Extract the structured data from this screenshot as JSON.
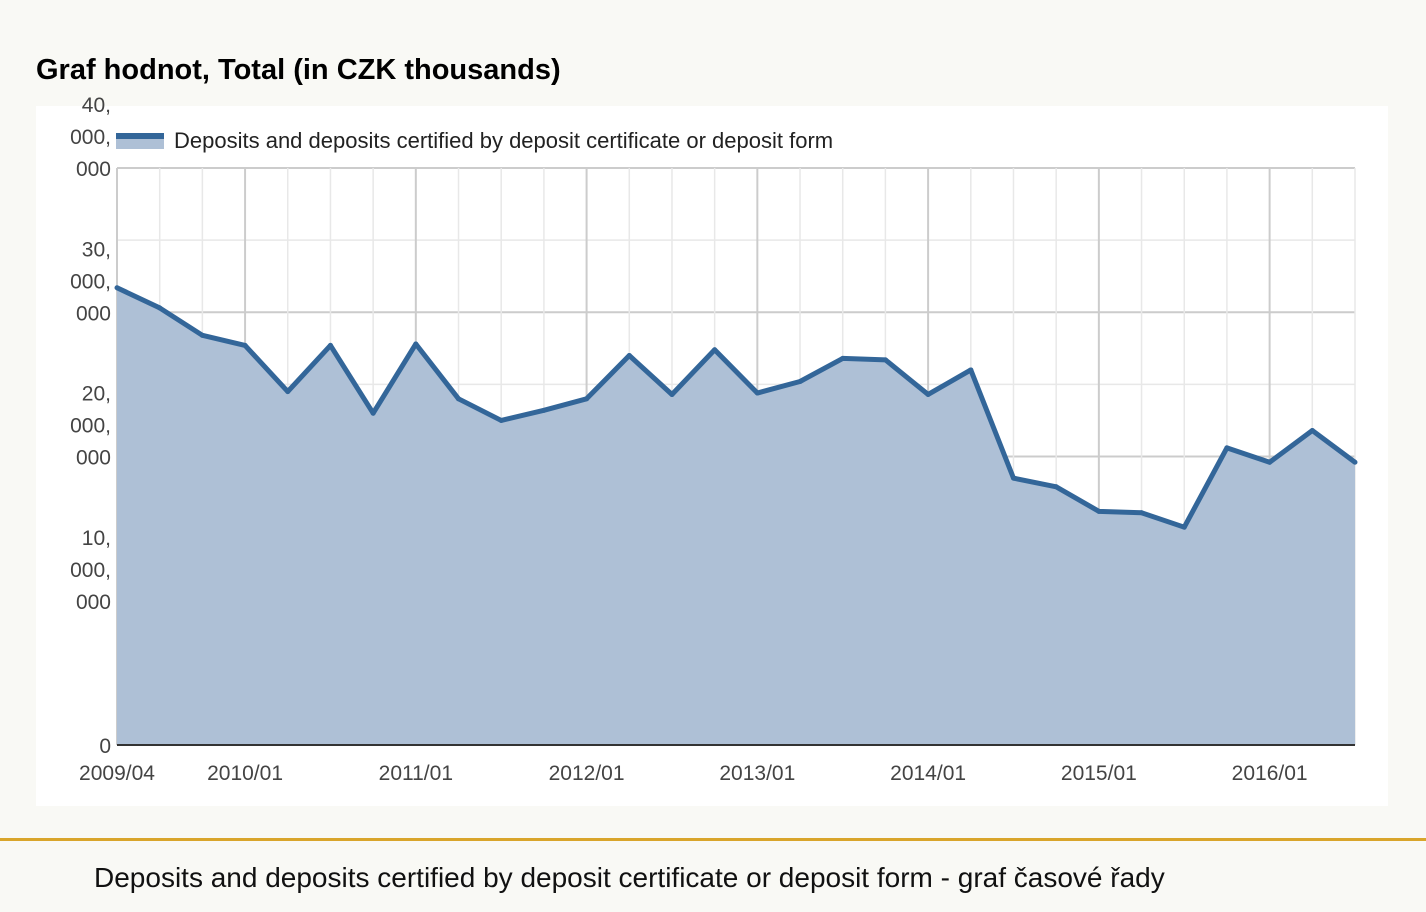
{
  "header": {
    "title": "Graf hodnot, Total (in CZK thousands)"
  },
  "caption": {
    "text": "Deposits and deposits certified by deposit certificate or deposit form - graf časové řady"
  },
  "colors": {
    "line": "#336699",
    "area": "#aec0d6",
    "accent": "#d9a52b"
  },
  "chart_data": {
    "type": "area",
    "title": "Graf hodnot, Total (in CZK thousands)",
    "series": [
      {
        "name": "Deposits and deposits certified by deposit certificate or deposit form",
        "x": [
          "2009/04",
          "2009/07",
          "2009/10",
          "2010/01",
          "2010/04",
          "2010/07",
          "2010/10",
          "2011/01",
          "2011/04",
          "2011/07",
          "2011/10",
          "2012/01",
          "2012/04",
          "2012/07",
          "2012/10",
          "2013/01",
          "2013/04",
          "2013/07",
          "2013/10",
          "2014/01",
          "2014/04",
          "2014/07",
          "2014/10",
          "2015/01",
          "2015/04",
          "2015/07",
          "2015/10",
          "2016/01",
          "2016/04",
          "2016/07"
        ],
        "values": [
          31700000,
          30300000,
          28400000,
          27700000,
          24500000,
          27700000,
          23000000,
          27800000,
          24000000,
          22500000,
          23200000,
          24000000,
          27000000,
          24300000,
          27400000,
          24400000,
          25200000,
          26800000,
          26700000,
          24300000,
          26000000,
          18500000,
          17900000,
          16200000,
          16100000,
          15100000,
          20600000,
          19600000,
          21800000,
          19600000
        ]
      }
    ],
    "y_ticks": [
      "0",
      "10,\n000,\n000",
      "20,\n000,\n000",
      "30,\n000,\n000",
      "40,\n000,\n000"
    ],
    "y_tick_values": [
      0,
      10000000,
      20000000,
      30000000,
      40000000
    ],
    "x_tick_labels": [
      "2009/04",
      "2010/01",
      "2011/01",
      "2012/01",
      "2013/01",
      "2014/01",
      "2015/01",
      "2016/01"
    ],
    "ylim": [
      0,
      40000000
    ],
    "grid": true,
    "legend": "top-left"
  }
}
